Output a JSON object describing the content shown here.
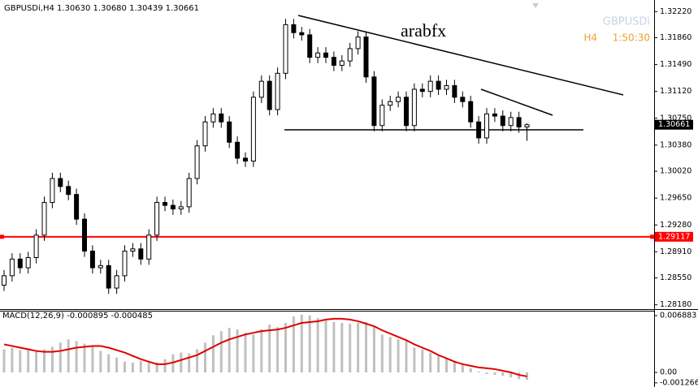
{
  "header": {
    "info": "GBPUSDi,H4  1.30630 1.30680 1.30439 1.30661",
    "watermark": "arabfx",
    "symbol": "GBPUSDi",
    "timeframe": "H4",
    "countdown": "1:50:30"
  },
  "chart_data": [
    {
      "type": "candlestick",
      "open": [
        1.2845,
        1.2858,
        1.2881,
        1.2869,
        1.2883,
        1.2914,
        1.2959,
        1.2992,
        1.2981,
        1.297,
        1.2936,
        1.2892,
        1.2869,
        1.2872,
        1.2841,
        1.2858,
        1.2892,
        1.2895,
        1.2881,
        1.2914,
        1.2959,
        1.2955,
        1.295,
        1.2953,
        1.2992,
        1.3037,
        1.307,
        1.3081,
        1.307,
        1.3042,
        1.302,
        1.3016,
        1.3104,
        1.3126,
        1.3087,
        1.3137,
        1.3204,
        1.3193,
        1.319,
        1.3159,
        1.3165,
        1.3159,
        1.3148,
        1.3154,
        1.3171,
        1.3187,
        1.3132,
        1.3065,
        1.3093,
        1.3098,
        1.3104,
        1.3065,
        1.3115,
        1.3112,
        1.3126,
        1.3115,
        1.312,
        1.3104,
        1.3098,
        1.307,
        1.3048,
        1.3081,
        1.3078,
        1.3065,
        1.3076,
        1.3063
      ],
      "high": [
        1.2866,
        1.2889,
        1.2889,
        1.2891,
        1.2922,
        1.2967,
        1.3,
        1.3,
        1.2989,
        1.2978,
        1.2944,
        1.29,
        1.288,
        1.288,
        1.2866,
        1.29,
        1.2903,
        1.2903,
        1.2922,
        1.2967,
        1.2967,
        1.2963,
        1.2961,
        1.3,
        1.3045,
        1.3078,
        1.3089,
        1.3089,
        1.3078,
        1.305,
        1.3028,
        1.3112,
        1.3134,
        1.3134,
        1.3145,
        1.3212,
        1.3212,
        1.3201,
        1.3198,
        1.3173,
        1.3173,
        1.3167,
        1.3162,
        1.3179,
        1.3195,
        1.3195,
        1.314,
        1.3101,
        1.3106,
        1.3112,
        1.3112,
        1.3123,
        1.3123,
        1.3134,
        1.3134,
        1.3128,
        1.3128,
        1.3112,
        1.3106,
        1.3078,
        1.3089,
        1.3089,
        1.3086,
        1.3084,
        1.3084,
        1.3068
      ],
      "low": [
        1.2837,
        1.285,
        1.2861,
        1.2861,
        1.2875,
        1.2906,
        1.2951,
        1.2973,
        1.2962,
        1.2928,
        1.2884,
        1.2861,
        1.2861,
        1.2833,
        1.2833,
        1.285,
        1.2884,
        1.2873,
        1.2873,
        1.2906,
        1.2947,
        1.2942,
        1.2942,
        1.2945,
        1.2984,
        1.3029,
        1.3062,
        1.3062,
        1.3034,
        1.3012,
        1.3008,
        1.3008,
        1.3096,
        1.3079,
        1.3079,
        1.3129,
        1.3185,
        1.3182,
        1.3151,
        1.3151,
        1.3151,
        1.314,
        1.314,
        1.3146,
        1.3163,
        1.3124,
        1.3057,
        1.3057,
        1.3085,
        1.309,
        1.3057,
        1.3057,
        1.3104,
        1.3104,
        1.3107,
        1.3107,
        1.3096,
        1.309,
        1.3062,
        1.304,
        1.304,
        1.307,
        1.3057,
        1.3057,
        1.3055,
        1.30439
      ],
      "close": [
        1.2858,
        1.2881,
        1.2869,
        1.2883,
        1.2914,
        1.2959,
        1.2992,
        1.2981,
        1.297,
        1.2936,
        1.2892,
        1.2869,
        1.2872,
        1.2841,
        1.2858,
        1.2892,
        1.2895,
        1.2881,
        1.2914,
        1.2959,
        1.2955,
        1.295,
        1.2953,
        1.2992,
        1.3037,
        1.307,
        1.3081,
        1.307,
        1.3042,
        1.302,
        1.3016,
        1.3104,
        1.3126,
        1.3087,
        1.3137,
        1.3204,
        1.3193,
        1.319,
        1.3159,
        1.3165,
        1.3159,
        1.3148,
        1.3154,
        1.3171,
        1.3187,
        1.3132,
        1.3065,
        1.3093,
        1.3098,
        1.3104,
        1.3065,
        1.3115,
        1.3112,
        1.3126,
        1.3115,
        1.312,
        1.3104,
        1.3098,
        1.307,
        1.3048,
        1.3081,
        1.3078,
        1.3065,
        1.3076,
        1.3063,
        1.30661
      ],
      "ylim": [
        1.2812,
        1.3238
      ],
      "yticks": [
        {
          "value": 1.3222,
          "label": "1.32220"
        },
        {
          "value": 1.3186,
          "label": "1.31860"
        },
        {
          "value": 1.3149,
          "label": "1.31490"
        },
        {
          "value": 1.3112,
          "label": "1.31120"
        },
        {
          "value": 1.3075,
          "label": "1.30750"
        },
        {
          "value": 1.3038,
          "label": "1.30380"
        },
        {
          "value": 1.3002,
          "label": "1.30020"
        },
        {
          "value": 1.2965,
          "label": "1.29650"
        },
        {
          "value": 1.2928,
          "label": "1.29280"
        },
        {
          "value": 1.2891,
          "label": "1.28910"
        },
        {
          "value": 1.2855,
          "label": "1.28550"
        },
        {
          "value": 1.2818,
          "label": "1.28180"
        }
      ],
      "hline": {
        "value": 1.29117,
        "color": "#ff0000"
      },
      "color": "#000000"
    },
    {
      "type": "macd",
      "title": "MACD(12,26,9) -0.000895 -0.000485",
      "histogram": {
        "color": "#c0c0c0",
        "values": [
          0.0028,
          0.003,
          0.0027,
          0.0029,
          0.0026,
          0.0028,
          0.0031,
          0.0036,
          0.004,
          0.0038,
          0.0035,
          0.0031,
          0.0026,
          0.0022,
          0.0018,
          0.0013,
          0.0012,
          0.0014,
          0.0013,
          0.0012,
          0.0016,
          0.0022,
          0.0024,
          0.0023,
          0.0028,
          0.0036,
          0.0045,
          0.005,
          0.0054,
          0.0052,
          0.0048,
          0.0046,
          0.0052,
          0.0058,
          0.0055,
          0.006,
          0.0068,
          0.007,
          0.0069,
          0.0066,
          0.0063,
          0.0061,
          0.006,
          0.0059,
          0.006,
          0.0061,
          0.0056,
          0.0046,
          0.0043,
          0.004,
          0.0038,
          0.003,
          0.0028,
          0.0024,
          0.0021,
          0.0017,
          0.0014,
          0.001,
          0.0005,
          0.0001,
          -0.0002,
          -0.0003,
          -0.0004,
          -0.0006,
          -0.0008,
          -0.000895
        ]
      },
      "signal": {
        "color": "#e00000",
        "values": [
          0.0034,
          0.0032,
          0.003,
          0.0028,
          0.0026,
          0.0025,
          0.0025,
          0.0026,
          0.0028,
          0.003,
          0.0031,
          0.0032,
          0.0032,
          0.003,
          0.0027,
          0.0024,
          0.002,
          0.0016,
          0.0013,
          0.001,
          0.001,
          0.0012,
          0.0015,
          0.0018,
          0.0021,
          0.0026,
          0.0031,
          0.0036,
          0.004,
          0.0043,
          0.0046,
          0.0048,
          0.005,
          0.0051,
          0.0052,
          0.0054,
          0.0057,
          0.006,
          0.0061,
          0.0062,
          0.0064,
          0.0065,
          0.0065,
          0.0064,
          0.0062,
          0.0059,
          0.0056,
          0.0051,
          0.0047,
          0.0043,
          0.0039,
          0.0034,
          0.003,
          0.0026,
          0.0021,
          0.0017,
          0.0013,
          0.001,
          0.0008,
          0.0006,
          0.0005,
          0.0004,
          0.0002,
          0.0,
          -0.0003,
          -0.000485
        ]
      },
      "ylim": [
        -0.00177,
        0.00767
      ],
      "yticks": [
        0.006883,
        {
          "value": 0,
          "label": "0.00"
        },
        -0.001266
      ]
    }
  ]
}
